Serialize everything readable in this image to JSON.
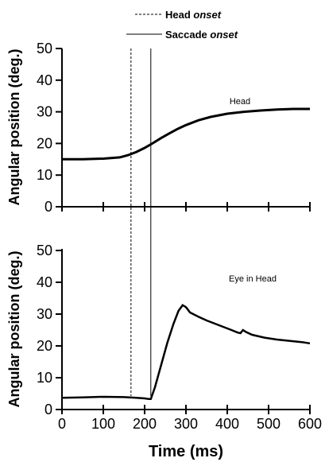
{
  "legend": {
    "head_onset_label": "Head",
    "head_onset_italic": "onset",
    "saccade_onset_label": "Saccade",
    "saccade_onset_italic": "onset"
  },
  "markers": {
    "head_onset_ms": 167,
    "saccade_onset_ms": 215
  },
  "chart_data": [
    {
      "type": "line",
      "title": "Head",
      "ylabel": "Angular position (deg.)",
      "xlabel": "Time (ms)",
      "xlim": [
        0,
        600
      ],
      "ylim": [
        0,
        50
      ],
      "yticks": [
        0,
        10,
        20,
        30,
        40,
        50
      ],
      "xticks": [
        0,
        100,
        200,
        300,
        400,
        500,
        600
      ],
      "series": [
        {
          "x": [
            0,
            50,
            100,
            140,
            160,
            180,
            200,
            220,
            240,
            260,
            280,
            300,
            330,
            360,
            400,
            440,
            480,
            520,
            560,
            600
          ],
          "y": [
            15,
            15,
            15.2,
            15.6,
            16.3,
            17.3,
            18.6,
            20.1,
            21.7,
            23.2,
            24.6,
            25.8,
            27.3,
            28.4,
            29.4,
            30,
            30.4,
            30.7,
            30.9,
            30.9
          ]
        }
      ]
    },
    {
      "type": "line",
      "title": "Eye in Head",
      "ylabel": "Angular position (deg.)",
      "xlabel": "Time (ms)",
      "xlim": [
        0,
        600
      ],
      "ylim": [
        0,
        50
      ],
      "yticks": [
        0,
        10,
        20,
        30,
        40,
        50
      ],
      "xticks": [
        0,
        100,
        200,
        300,
        400,
        500,
        600
      ],
      "xtick_labels": [
        "0",
        "100",
        "200",
        "300",
        "400",
        "500",
        "600"
      ],
      "series": [
        {
          "x": [
            0,
            50,
            100,
            150,
            180,
            200,
            210,
            215,
            225,
            240,
            255,
            270,
            282,
            292,
            300,
            310,
            330,
            350,
            370,
            390,
            410,
            425,
            432,
            438,
            445,
            460,
            490,
            520,
            550,
            580,
            600
          ],
          "y": [
            3.7,
            3.8,
            4,
            3.9,
            3.7,
            3.5,
            3.3,
            3.3,
            7,
            14,
            21,
            27,
            31,
            32.8,
            32.2,
            30.5,
            29.2,
            28,
            27,
            26,
            25,
            24.2,
            24,
            25,
            24.4,
            23.5,
            22.6,
            22,
            21.6,
            21.2,
            20.8
          ]
        }
      ]
    }
  ]
}
